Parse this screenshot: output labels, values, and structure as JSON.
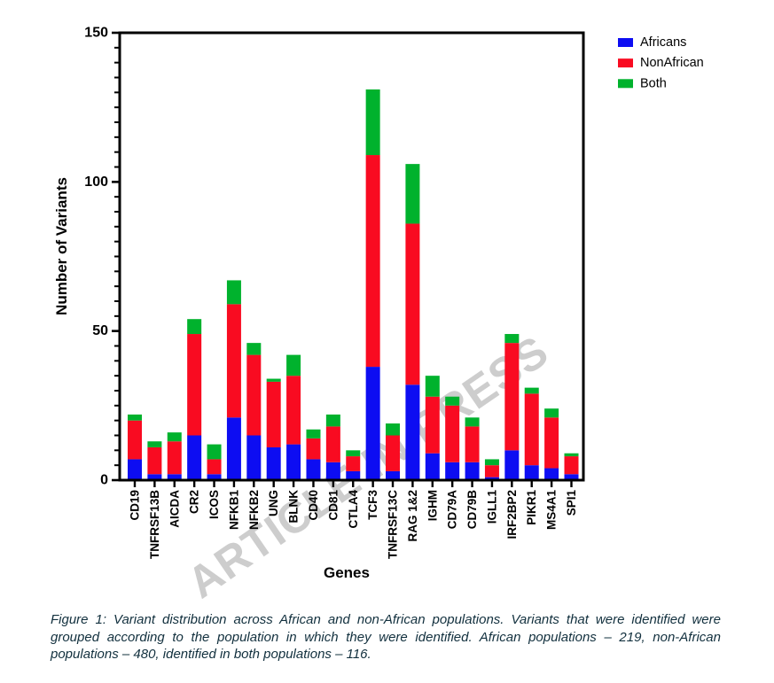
{
  "watermark": {
    "text": "ARTICLE IN PRESS",
    "color": "#cdcdcd"
  },
  "legend": {
    "items": [
      {
        "label": "Africans",
        "color": "#0d0df2"
      },
      {
        "label": "NonAfrican",
        "color": "#f90b21"
      },
      {
        "label": "Both",
        "color": "#00b22d"
      }
    ]
  },
  "chart_data": {
    "type": "bar",
    "stacked": true,
    "xlabel": "Genes",
    "ylabel": "Number of Variants",
    "ylim": [
      0,
      150
    ],
    "y_major_ticks": [
      0,
      50,
      100,
      150
    ],
    "y_minor_step": 5,
    "grid": false,
    "legend_position": "top-right",
    "categories": [
      "CD19",
      "TNFRSF13B",
      "AICDA",
      "CR2",
      "ICOS",
      "NFKB1",
      "NFKB2",
      "UNG",
      "BLNK",
      "CD40",
      "CD81",
      "CTLA4",
      "TCF3",
      "TNFRSF13C",
      "RAG 1&2",
      "IGHM",
      "CD79A",
      "CD79B",
      "IGLL1",
      "IRF2BP2",
      "PIKR1",
      "MS4A1",
      "SPI1"
    ],
    "series": [
      {
        "name": "Africans",
        "color": "#0d0df2",
        "values": [
          7,
          2,
          2,
          15,
          2,
          21,
          15,
          11,
          12,
          7,
          6,
          3,
          38,
          3,
          32,
          9,
          6,
          6,
          1,
          10,
          5,
          4,
          2
        ]
      },
      {
        "name": "NonAfrican",
        "color": "#f90b21",
        "values": [
          13,
          9,
          11,
          34,
          5,
          38,
          27,
          22,
          23,
          7,
          12,
          5,
          71,
          12,
          54,
          19,
          19,
          12,
          4,
          36,
          24,
          17,
          6
        ]
      },
      {
        "name": "Both",
        "color": "#00b22d",
        "values": [
          2,
          2,
          3,
          5,
          5,
          8,
          4,
          1,
          7,
          3,
          4,
          2,
          22,
          4,
          20,
          7,
          3,
          3,
          2,
          3,
          2,
          3,
          1
        ]
      }
    ],
    "series_totals": {
      "Africans": 219,
      "NonAfrican": 480,
      "Both": 116
    }
  },
  "caption": {
    "text": "Figure 1: Variant distribution across African and non-African populations. Variants that were identified were grouped according to the population in which they were identified. African populations – 219, non-African populations – 480, identified in both populations – 116."
  }
}
